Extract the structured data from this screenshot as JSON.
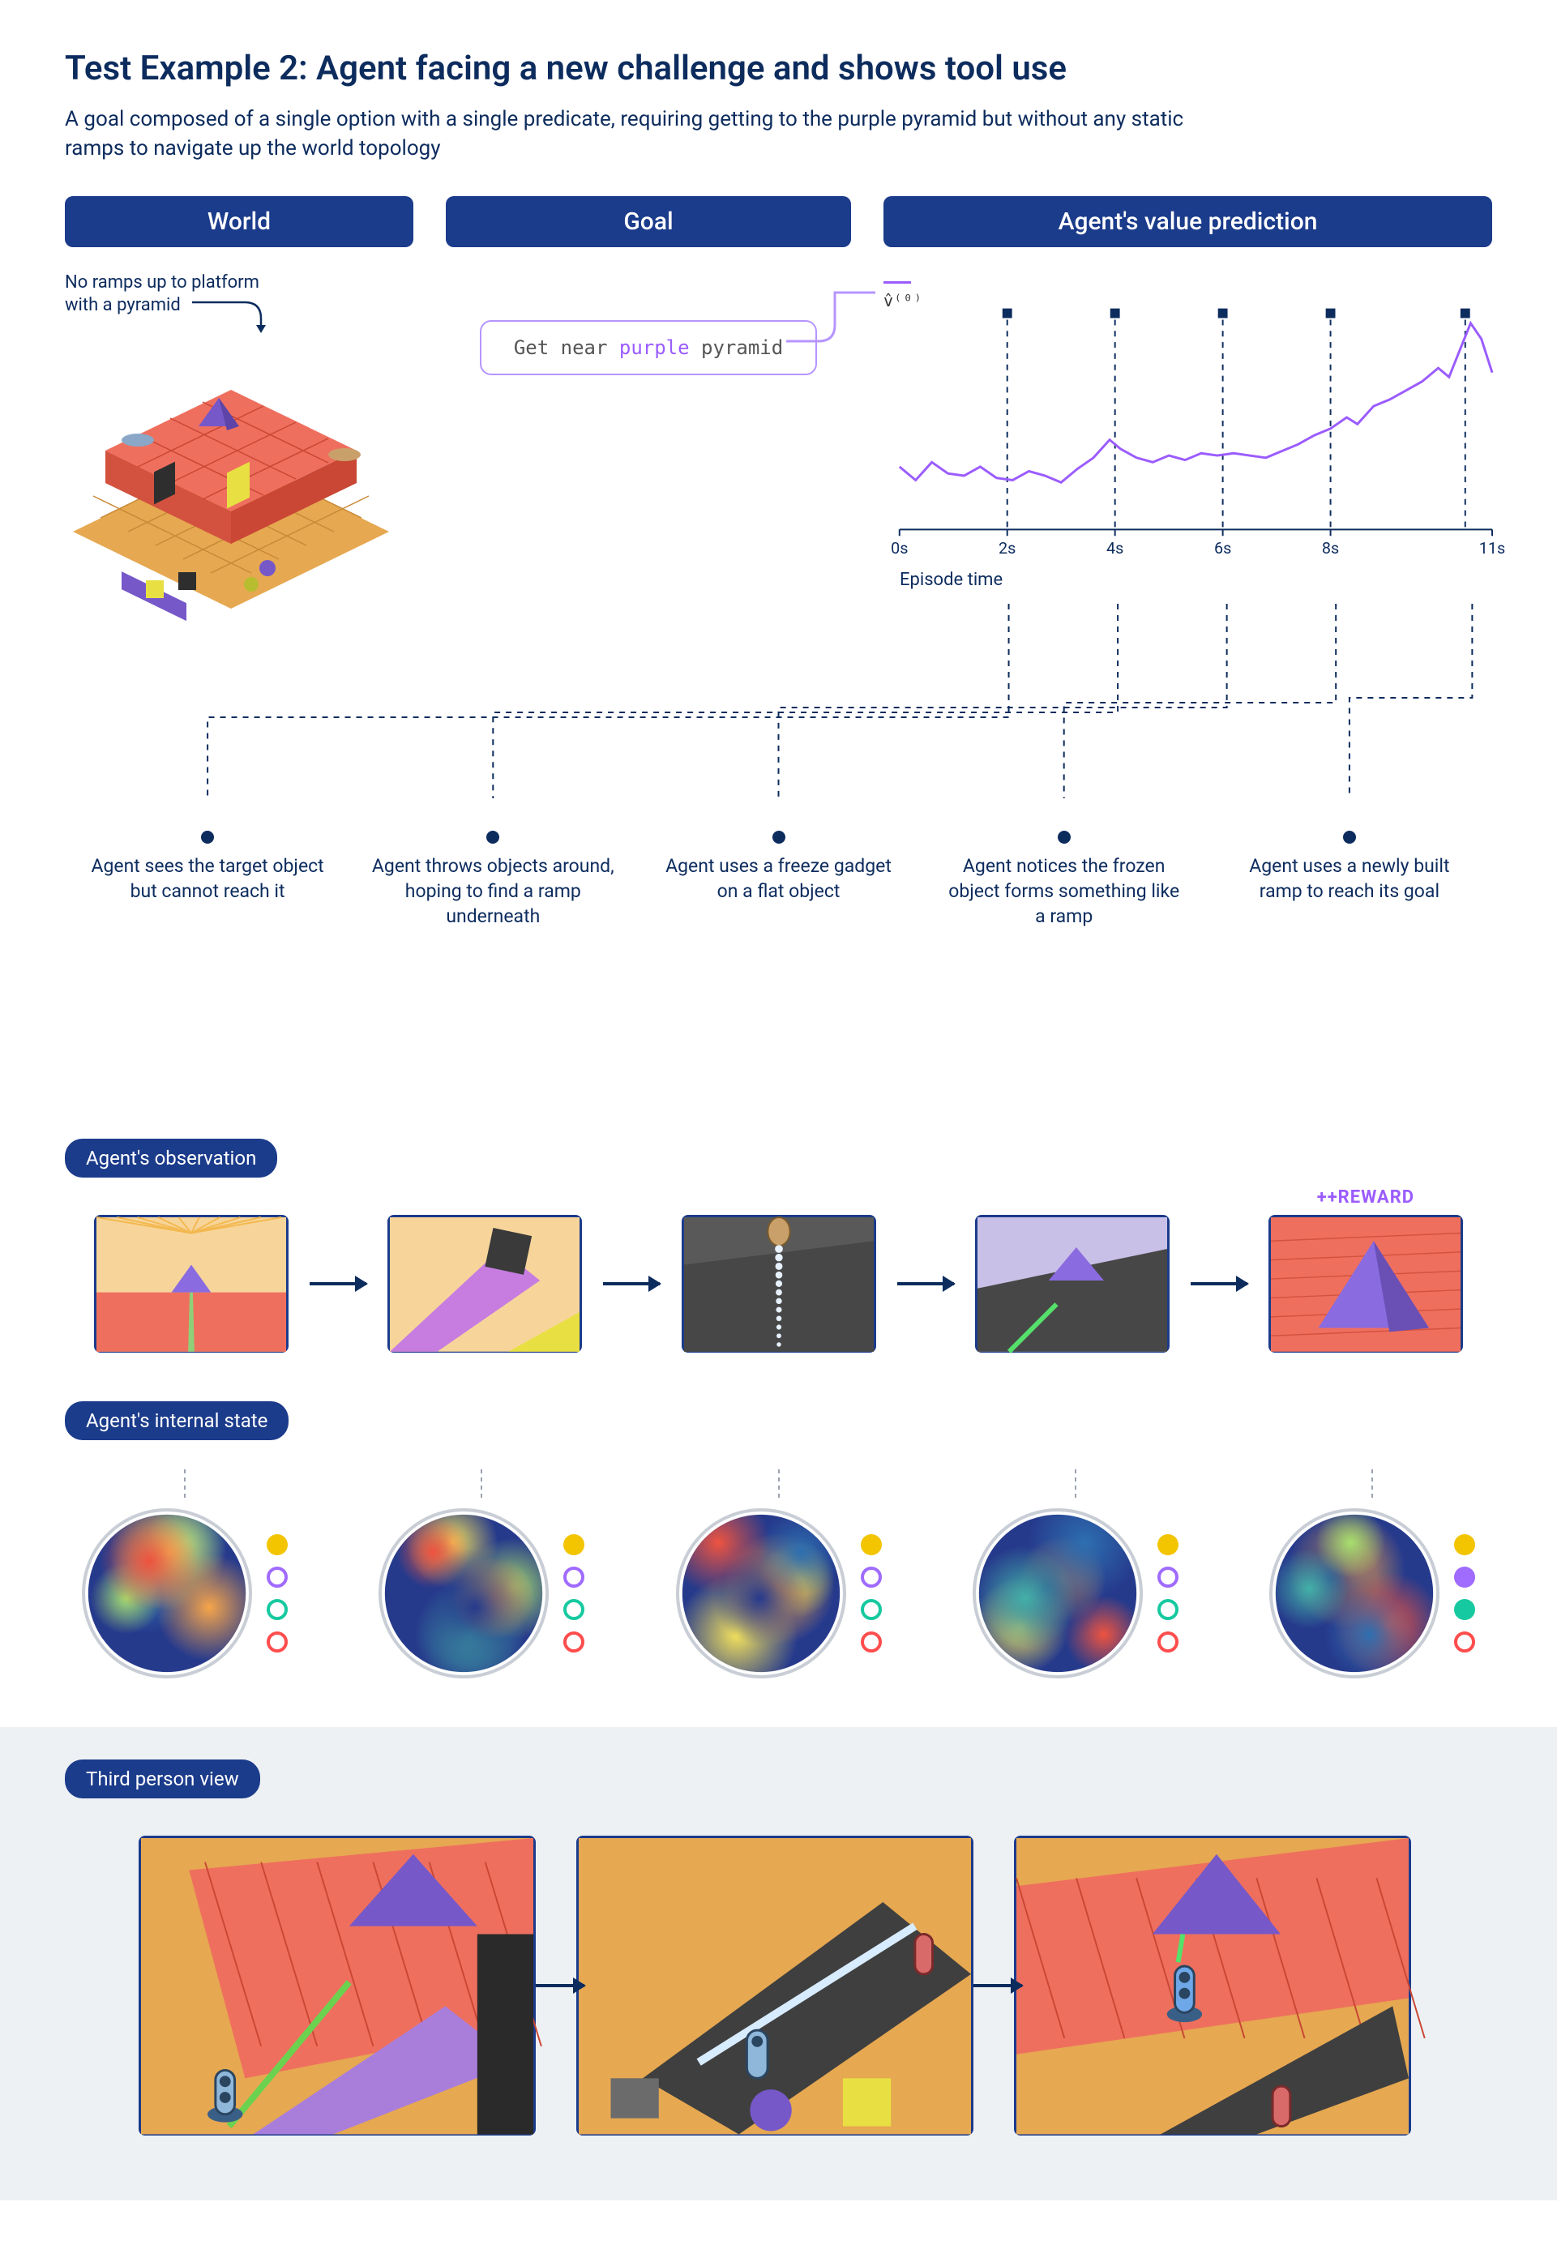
{
  "title": "Test Example 2: Agent facing a new challenge and shows tool use",
  "subtitle": "A goal composed of a single option with a single predicate, requiring getting to the purple pyramid but without any static ramps to navigate up the world topology",
  "headers": {
    "world": "World",
    "goal": "Goal",
    "value": "Agent's value prediction"
  },
  "world_note_l1": "No ramps up to platform",
  "world_note_l2": "with a pyramid",
  "goal_text_pre": "Get near ",
  "goal_text_purple": "purple",
  "goal_text_post": " pyramid",
  "value_y_label": "v̂⁽⁰⁾",
  "episode_axis_label": "Episode time",
  "chart": {
    "type": "line",
    "line_color": "#9b5cff",
    "line_width": 3,
    "background_color": "#ffffff",
    "axis_color": "#0d2c5e",
    "x_ticks": [
      "0s",
      "2s",
      "4s",
      "6s",
      "8s",
      "11s"
    ],
    "x_tick_positions": [
      0,
      2,
      4,
      6,
      8,
      11
    ],
    "x_range": [
      0,
      11
    ],
    "y_range": [
      0,
      1
    ],
    "marker_positions_s": [
      2,
      4,
      6,
      8,
      10.5
    ],
    "marker_style": "square",
    "marker_color": "#0d2c5e",
    "series_xy": [
      [
        0.0,
        0.28
      ],
      [
        0.3,
        0.22
      ],
      [
        0.6,
        0.3
      ],
      [
        0.9,
        0.25
      ],
      [
        1.2,
        0.24
      ],
      [
        1.5,
        0.28
      ],
      [
        1.8,
        0.23
      ],
      [
        2.1,
        0.22
      ],
      [
        2.4,
        0.26
      ],
      [
        2.7,
        0.24
      ],
      [
        3.0,
        0.21
      ],
      [
        3.3,
        0.27
      ],
      [
        3.6,
        0.32
      ],
      [
        3.9,
        0.4
      ],
      [
        4.1,
        0.36
      ],
      [
        4.4,
        0.32
      ],
      [
        4.7,
        0.3
      ],
      [
        5.0,
        0.33
      ],
      [
        5.3,
        0.31
      ],
      [
        5.6,
        0.34
      ],
      [
        5.9,
        0.33
      ],
      [
        6.2,
        0.34
      ],
      [
        6.5,
        0.33
      ],
      [
        6.8,
        0.32
      ],
      [
        7.1,
        0.35
      ],
      [
        7.4,
        0.38
      ],
      [
        7.7,
        0.42
      ],
      [
        8.0,
        0.45
      ],
      [
        8.3,
        0.5
      ],
      [
        8.5,
        0.47
      ],
      [
        8.8,
        0.55
      ],
      [
        9.1,
        0.58
      ],
      [
        9.4,
        0.62
      ],
      [
        9.7,
        0.66
      ],
      [
        10.0,
        0.72
      ],
      [
        10.2,
        0.68
      ],
      [
        10.4,
        0.8
      ],
      [
        10.6,
        0.92
      ],
      [
        10.8,
        0.85
      ],
      [
        11.0,
        0.7
      ]
    ]
  },
  "timeline": [
    {
      "t_s": 2.0,
      "text": "Agent sees the target object but cannot reach it"
    },
    {
      "t_s": 4.0,
      "text": "Agent throws objects around, hoping to find a ramp underneath"
    },
    {
      "t_s": 6.0,
      "text": "Agent uses a freeze gadget on a flat object"
    },
    {
      "t_s": 8.0,
      "text": "Agent notices the frozen object forms something like a ramp"
    },
    {
      "t_s": 10.5,
      "text": "Agent uses a newly built ramp to reach its goal"
    }
  ],
  "section_labels": {
    "observation": "Agent's observation",
    "internal": "Agent's internal state",
    "third": "Third person view"
  },
  "reward_tag": "++REWARD",
  "state_dot_colors": {
    "yellow": "#f3c400",
    "purple": "#a06bff",
    "teal": "#17c9a0",
    "red": "#ff4d4d"
  },
  "state_patterns": [
    {
      "yellow": "fill",
      "purple": "outline",
      "teal": "outline",
      "red": "outline"
    },
    {
      "yellow": "fill",
      "purple": "outline",
      "teal": "outline",
      "red": "outline"
    },
    {
      "yellow": "fill",
      "purple": "outline",
      "teal": "outline",
      "red": "outline"
    },
    {
      "yellow": "fill",
      "purple": "outline",
      "teal": "outline",
      "red": "outline"
    },
    {
      "yellow": "fill",
      "purple": "fill",
      "teal": "fill",
      "red": "outline"
    }
  ],
  "world_scene": {
    "floor_color": "#e6a851",
    "platform_color": "#ef6f5e",
    "pyramid_color": "#7658c9",
    "object_colors": [
      "#7658c9",
      "#e8e043",
      "#2e2e2e",
      "#b0457a",
      "#43b069"
    ]
  },
  "observation_scenes": [
    {
      "bg": "#f7d59a",
      "platform": "#ef6f5e",
      "pyramid": "#8a6be0",
      "extra": "beam"
    },
    {
      "bg": "#f7d59a",
      "fg": "#c77de0",
      "cube": "#3a3a3a",
      "accent": "#e8e043"
    },
    {
      "bg": "#595959",
      "rock": "#474747",
      "streak": "#e7f1ff"
    },
    {
      "bg": "#c9c0e8",
      "rock": "#474747",
      "pyramid": "#8a6be0",
      "laser": "#55e06b"
    },
    {
      "bg": "#ef6f5e",
      "pyramid": "#8a6be0"
    }
  ],
  "heatmap_palette": [
    "#263a8c",
    "#2d6fb0",
    "#43b0a8",
    "#a7de6e",
    "#f6e35b",
    "#f7a54a",
    "#ee5340"
  ],
  "third_scenes": [
    {
      "platform": "#ef6f5e",
      "pyramid": "#7658c9",
      "slab": "#a97edb",
      "laser": "#6ad24f",
      "floor": "#e6a851"
    },
    {
      "rock": "#3f3f3f",
      "glow": "#d8ecff",
      "ball": "#7658c9",
      "cube": "#e8e043",
      "floor": "#e6a851"
    },
    {
      "platform": "#ef6f5e",
      "pyramid": "#7658c9",
      "rock": "#3f3f3f",
      "agent": "#6fa8e8",
      "floor": "#e6a851"
    }
  ]
}
